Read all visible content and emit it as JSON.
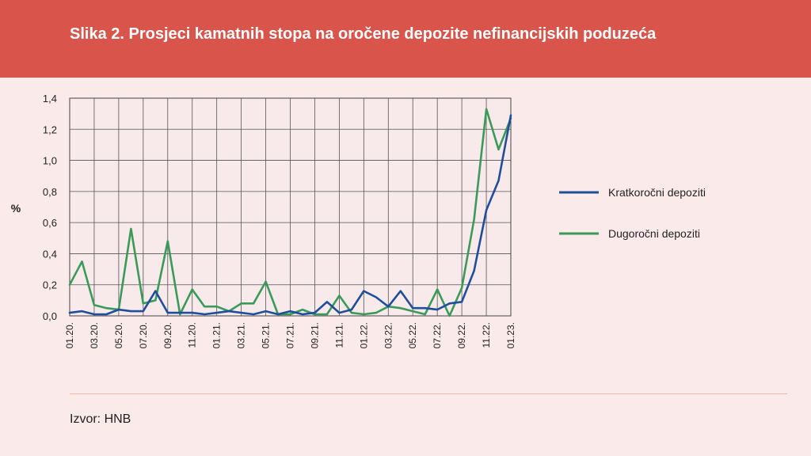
{
  "header": {
    "title": "Slika 2. Prosjeci kamatnih stopa na oročene depozite nefinancijskih poduzeća"
  },
  "footer": {
    "source": "Izvor: HNB"
  },
  "chart_data": {
    "type": "line",
    "title": "Slika 2. Prosjeci kamatnih stopa na oročene depozite nefinancijskih poduzeća",
    "ylabel": "%",
    "ylim": [
      0,
      1.4
    ],
    "yticks": [
      "0,0",
      "0,2",
      "0,4",
      "0,6",
      "0,8",
      "1,0",
      "1,2",
      "1,4"
    ],
    "xtick_labels": [
      "01.20.",
      "03.20.",
      "05.20.",
      "07.20.",
      "09.20.",
      "11.20.",
      "01.21.",
      "03.21.",
      "05.21.",
      "07.21.",
      "09.21.",
      "11.21.",
      "01.22.",
      "03.22.",
      "05.22.",
      "07.22.",
      "09.22.",
      "11.22.",
      "01.23."
    ],
    "x": [
      "01.20.",
      "02.20.",
      "03.20.",
      "04.20.",
      "05.20.",
      "06.20.",
      "07.20.",
      "08.20.",
      "09.20.",
      "10.20.",
      "11.20.",
      "12.20.",
      "01.21.",
      "02.21.",
      "03.21.",
      "04.21.",
      "05.21.",
      "06.21.",
      "07.21.",
      "08.21.",
      "09.21.",
      "10.21.",
      "11.21.",
      "12.21.",
      "01.22.",
      "02.22.",
      "03.22.",
      "04.22.",
      "05.22.",
      "06.22.",
      "07.22.",
      "08.22.",
      "09.22.",
      "10.22.",
      "11.22.",
      "12.22.",
      "01.23."
    ],
    "grid": true,
    "legend_position": "right",
    "series": [
      {
        "name": "Kratkoročni depoziti",
        "color": "#1f4e9c",
        "values": [
          0.02,
          0.03,
          0.01,
          0.01,
          0.04,
          0.03,
          0.03,
          0.16,
          0.02,
          0.02,
          0.02,
          0.01,
          0.02,
          0.03,
          0.02,
          0.01,
          0.03,
          0.01,
          0.03,
          0.01,
          0.02,
          0.09,
          0.02,
          0.04,
          0.16,
          0.12,
          0.06,
          0.16,
          0.05,
          0.05,
          0.04,
          0.08,
          0.09,
          0.29,
          0.68,
          0.87,
          1.29
        ]
      },
      {
        "name": "Dugoročni depoziti",
        "color": "#3a9a5a",
        "values": [
          0.2,
          0.35,
          0.07,
          0.05,
          0.04,
          0.56,
          0.08,
          0.1,
          0.48,
          0.01,
          0.17,
          0.06,
          0.06,
          0.03,
          0.08,
          0.08,
          0.22,
          0.01,
          0.01,
          0.04,
          0.01,
          0.01,
          0.13,
          0.02,
          0.01,
          0.02,
          0.06,
          0.05,
          0.03,
          0.01,
          0.17,
          0.0,
          0.18,
          0.62,
          1.33,
          1.07,
          1.27
        ]
      }
    ]
  }
}
